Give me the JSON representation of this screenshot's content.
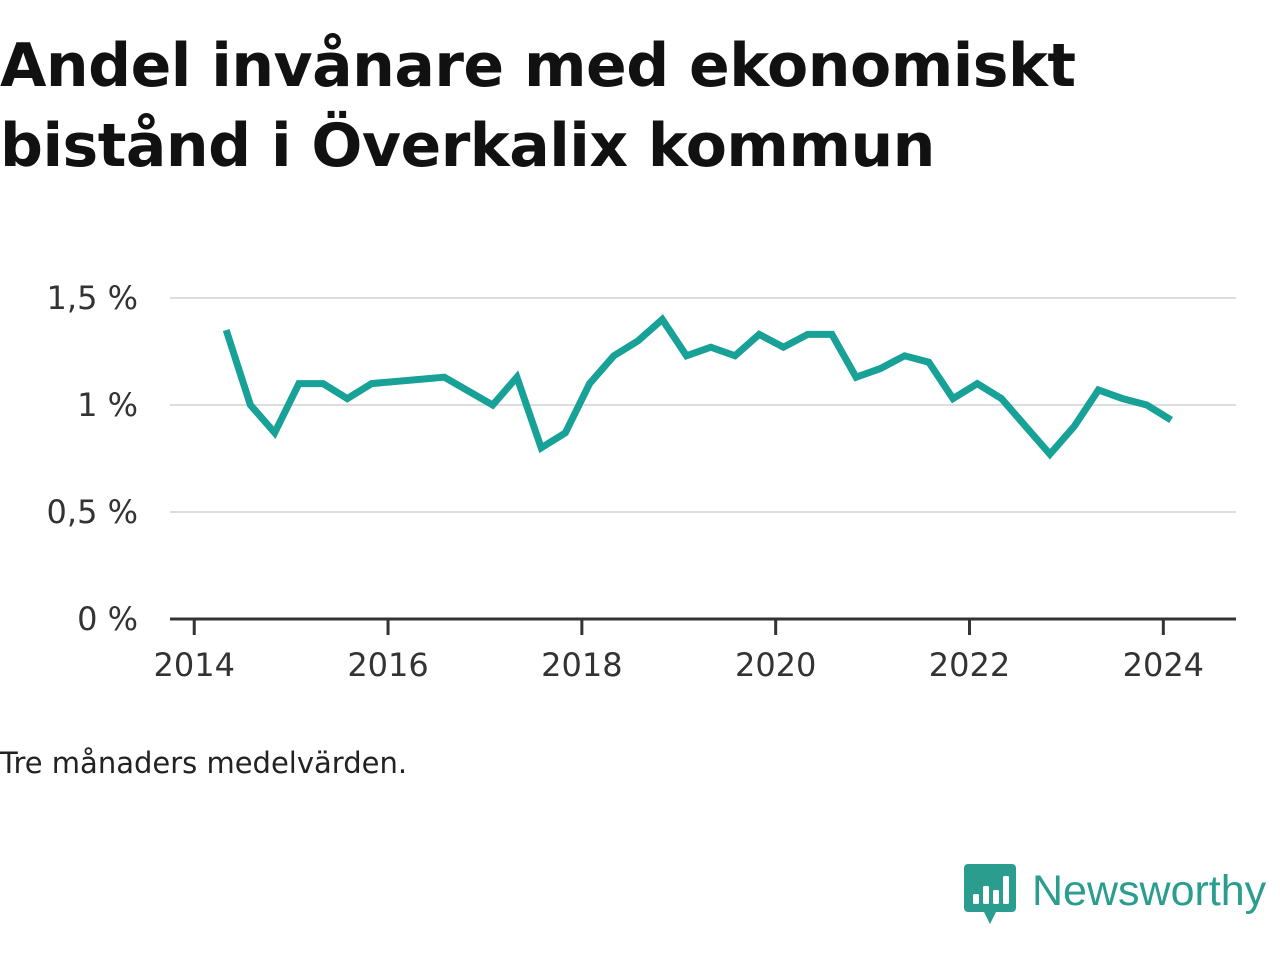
{
  "title": "Andel invånare med ekonomiskt bistånd i Överkalix kommun",
  "footnote": "Tre månaders medelvärden.",
  "brand": {
    "name": "Newsworthy",
    "icon": "bar-chart-speech-bubble-icon",
    "color": "#2a9d8f"
  },
  "chart_data": {
    "type": "line",
    "title": "Andel invånare med ekonomiskt bistånd i Överkalix kommun",
    "xlabel": "",
    "ylabel": "",
    "xlim": [
      2013.75,
      2024.75
    ],
    "ylim": [
      0,
      1.5
    ],
    "grid": true,
    "line_color": "#18a197",
    "y_ticks": [
      {
        "value": 0,
        "label": "0 %"
      },
      {
        "value": 0.5,
        "label": "0,5 %"
      },
      {
        "value": 1,
        "label": "1 %"
      },
      {
        "value": 1.5,
        "label": "1,5 %"
      }
    ],
    "x_ticks": [
      {
        "value": 2014,
        "label": "2014"
      },
      {
        "value": 2016,
        "label": "2016"
      },
      {
        "value": 2018,
        "label": "2018"
      },
      {
        "value": 2020,
        "label": "2020"
      },
      {
        "value": 2022,
        "label": "2022"
      },
      {
        "value": 2024,
        "label": "2024"
      }
    ],
    "series": [
      {
        "x": [
          2014.33,
          2014.58,
          2014.83,
          2015.08,
          2015.33,
          2015.58,
          2015.83,
          2016.58,
          2017.08,
          2017.33,
          2017.58,
          2017.83,
          2018.08,
          2018.33,
          2018.58,
          2018.83,
          2019.08,
          2019.33,
          2019.58,
          2019.83,
          2020.08,
          2020.33,
          2020.58,
          2020.83,
          2021.08,
          2021.33,
          2021.58,
          2021.83,
          2022.08,
          2022.33,
          2022.58,
          2022.83,
          2023.08,
          2023.33,
          2023.58,
          2023.83,
          2024.08
        ],
        "y": [
          1.35,
          1.0,
          0.87,
          1.1,
          1.1,
          1.03,
          1.1,
          1.13,
          1.0,
          1.13,
          0.8,
          0.87,
          1.1,
          1.23,
          1.3,
          1.4,
          1.23,
          1.27,
          1.23,
          1.33,
          1.27,
          1.33,
          1.33,
          1.13,
          1.17,
          1.23,
          1.2,
          1.03,
          1.1,
          1.03,
          0.9,
          0.77,
          0.9,
          1.07,
          1.03,
          1.0,
          0.93
        ]
      }
    ]
  }
}
